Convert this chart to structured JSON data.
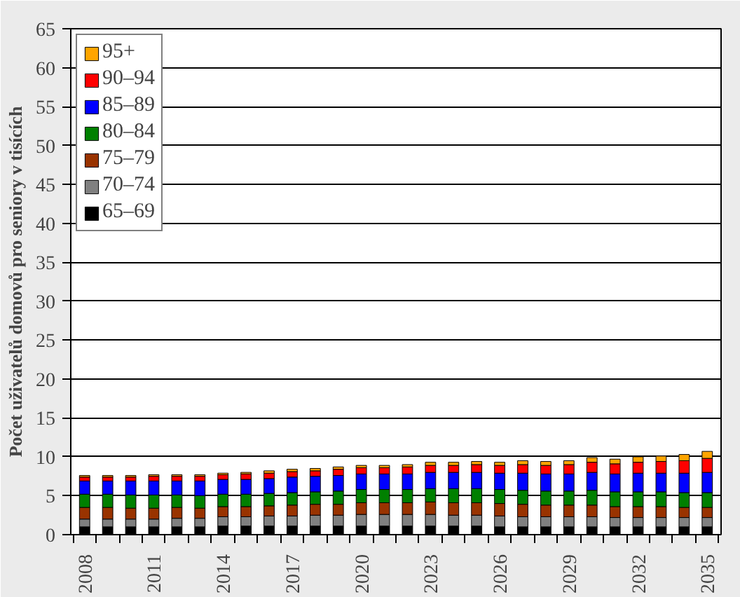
{
  "chart_data": {
    "type": "bar",
    "stacked": true,
    "ylabel": "Počet uživatelů domovů pro seniory v tisících",
    "categories": [
      "2008",
      null,
      null,
      "2011",
      null,
      null,
      "2014",
      null,
      null,
      "2017",
      null,
      null,
      "2020",
      null,
      null,
      "2023",
      null,
      null,
      "2026",
      null,
      null,
      "2029",
      null,
      null,
      "2032",
      null,
      null,
      "2035"
    ],
    "series": [
      {
        "name": "65–69",
        "color": "#000000",
        "values": [
          1.0,
          1.0,
          1.0,
          1.0,
          1.0,
          1.0,
          1.1,
          1.1,
          1.1,
          1.1,
          1.1,
          1.1,
          1.1,
          1.1,
          1.1,
          1.1,
          1.1,
          1.1,
          1.0,
          1.0,
          1.0,
          1.0,
          1.0,
          1.0,
          1.0,
          1.0,
          1.0,
          1.0
        ]
      },
      {
        "name": "70–74",
        "color": "#808080",
        "values": [
          1.0,
          1.0,
          1.0,
          1.0,
          1.1,
          1.1,
          1.2,
          1.2,
          1.3,
          1.3,
          1.4,
          1.4,
          1.5,
          1.5,
          1.5,
          1.5,
          1.4,
          1.4,
          1.4,
          1.3,
          1.3,
          1.3,
          1.3,
          1.2,
          1.2,
          1.2,
          1.2,
          1.2
        ]
      },
      {
        "name": "75–79",
        "color": "#993300",
        "values": [
          1.5,
          1.5,
          1.4,
          1.4,
          1.4,
          1.3,
          1.3,
          1.3,
          1.3,
          1.4,
          1.4,
          1.4,
          1.5,
          1.5,
          1.5,
          1.6,
          1.6,
          1.6,
          1.6,
          1.6,
          1.5,
          1.5,
          1.5,
          1.4,
          1.4,
          1.4,
          1.3,
          1.3
        ]
      },
      {
        "name": "80–84",
        "color": "#008000",
        "values": [
          1.7,
          1.7,
          1.7,
          1.7,
          1.6,
          1.6,
          1.6,
          1.6,
          1.6,
          1.6,
          1.6,
          1.7,
          1.7,
          1.7,
          1.7,
          1.7,
          1.8,
          1.8,
          1.8,
          1.8,
          1.8,
          1.8,
          1.9,
          1.9,
          1.9,
          1.9,
          1.9,
          1.9
        ]
      },
      {
        "name": "85–89",
        "color": "#0000ff",
        "values": [
          1.7,
          1.7,
          1.8,
          1.8,
          1.8,
          1.9,
          1.9,
          1.9,
          1.9,
          2.0,
          2.0,
          2.0,
          2.0,
          2.0,
          2.0,
          2.1,
          2.1,
          2.1,
          2.1,
          2.2,
          2.2,
          2.2,
          2.3,
          2.3,
          2.4,
          2.4,
          2.5,
          2.6
        ]
      },
      {
        "name": "90–94",
        "color": "#ff0000",
        "values": [
          0.5,
          0.5,
          0.5,
          0.6,
          0.6,
          0.6,
          0.6,
          0.7,
          0.7,
          0.7,
          0.7,
          0.8,
          0.8,
          0.8,
          0.9,
          0.9,
          0.9,
          1.0,
          1.0,
          1.1,
          1.1,
          1.2,
          1.3,
          1.3,
          1.4,
          1.5,
          1.6,
          1.8
        ]
      },
      {
        "name": "95+",
        "color": "#ffa500",
        "values": [
          0.2,
          0.2,
          0.2,
          0.2,
          0.2,
          0.2,
          0.2,
          0.2,
          0.3,
          0.3,
          0.3,
          0.3,
          0.3,
          0.3,
          0.3,
          0.4,
          0.4,
          0.4,
          0.4,
          0.5,
          0.5,
          0.5,
          0.6,
          0.6,
          0.7,
          0.7,
          0.8,
          0.9
        ]
      }
    ],
    "ylim": [
      0,
      65
    ],
    "yticks": [
      0,
      5,
      10,
      15,
      20,
      25,
      30,
      35,
      40,
      45,
      50,
      55,
      60,
      65
    ],
    "grid": "y",
    "legend": "top left"
  }
}
